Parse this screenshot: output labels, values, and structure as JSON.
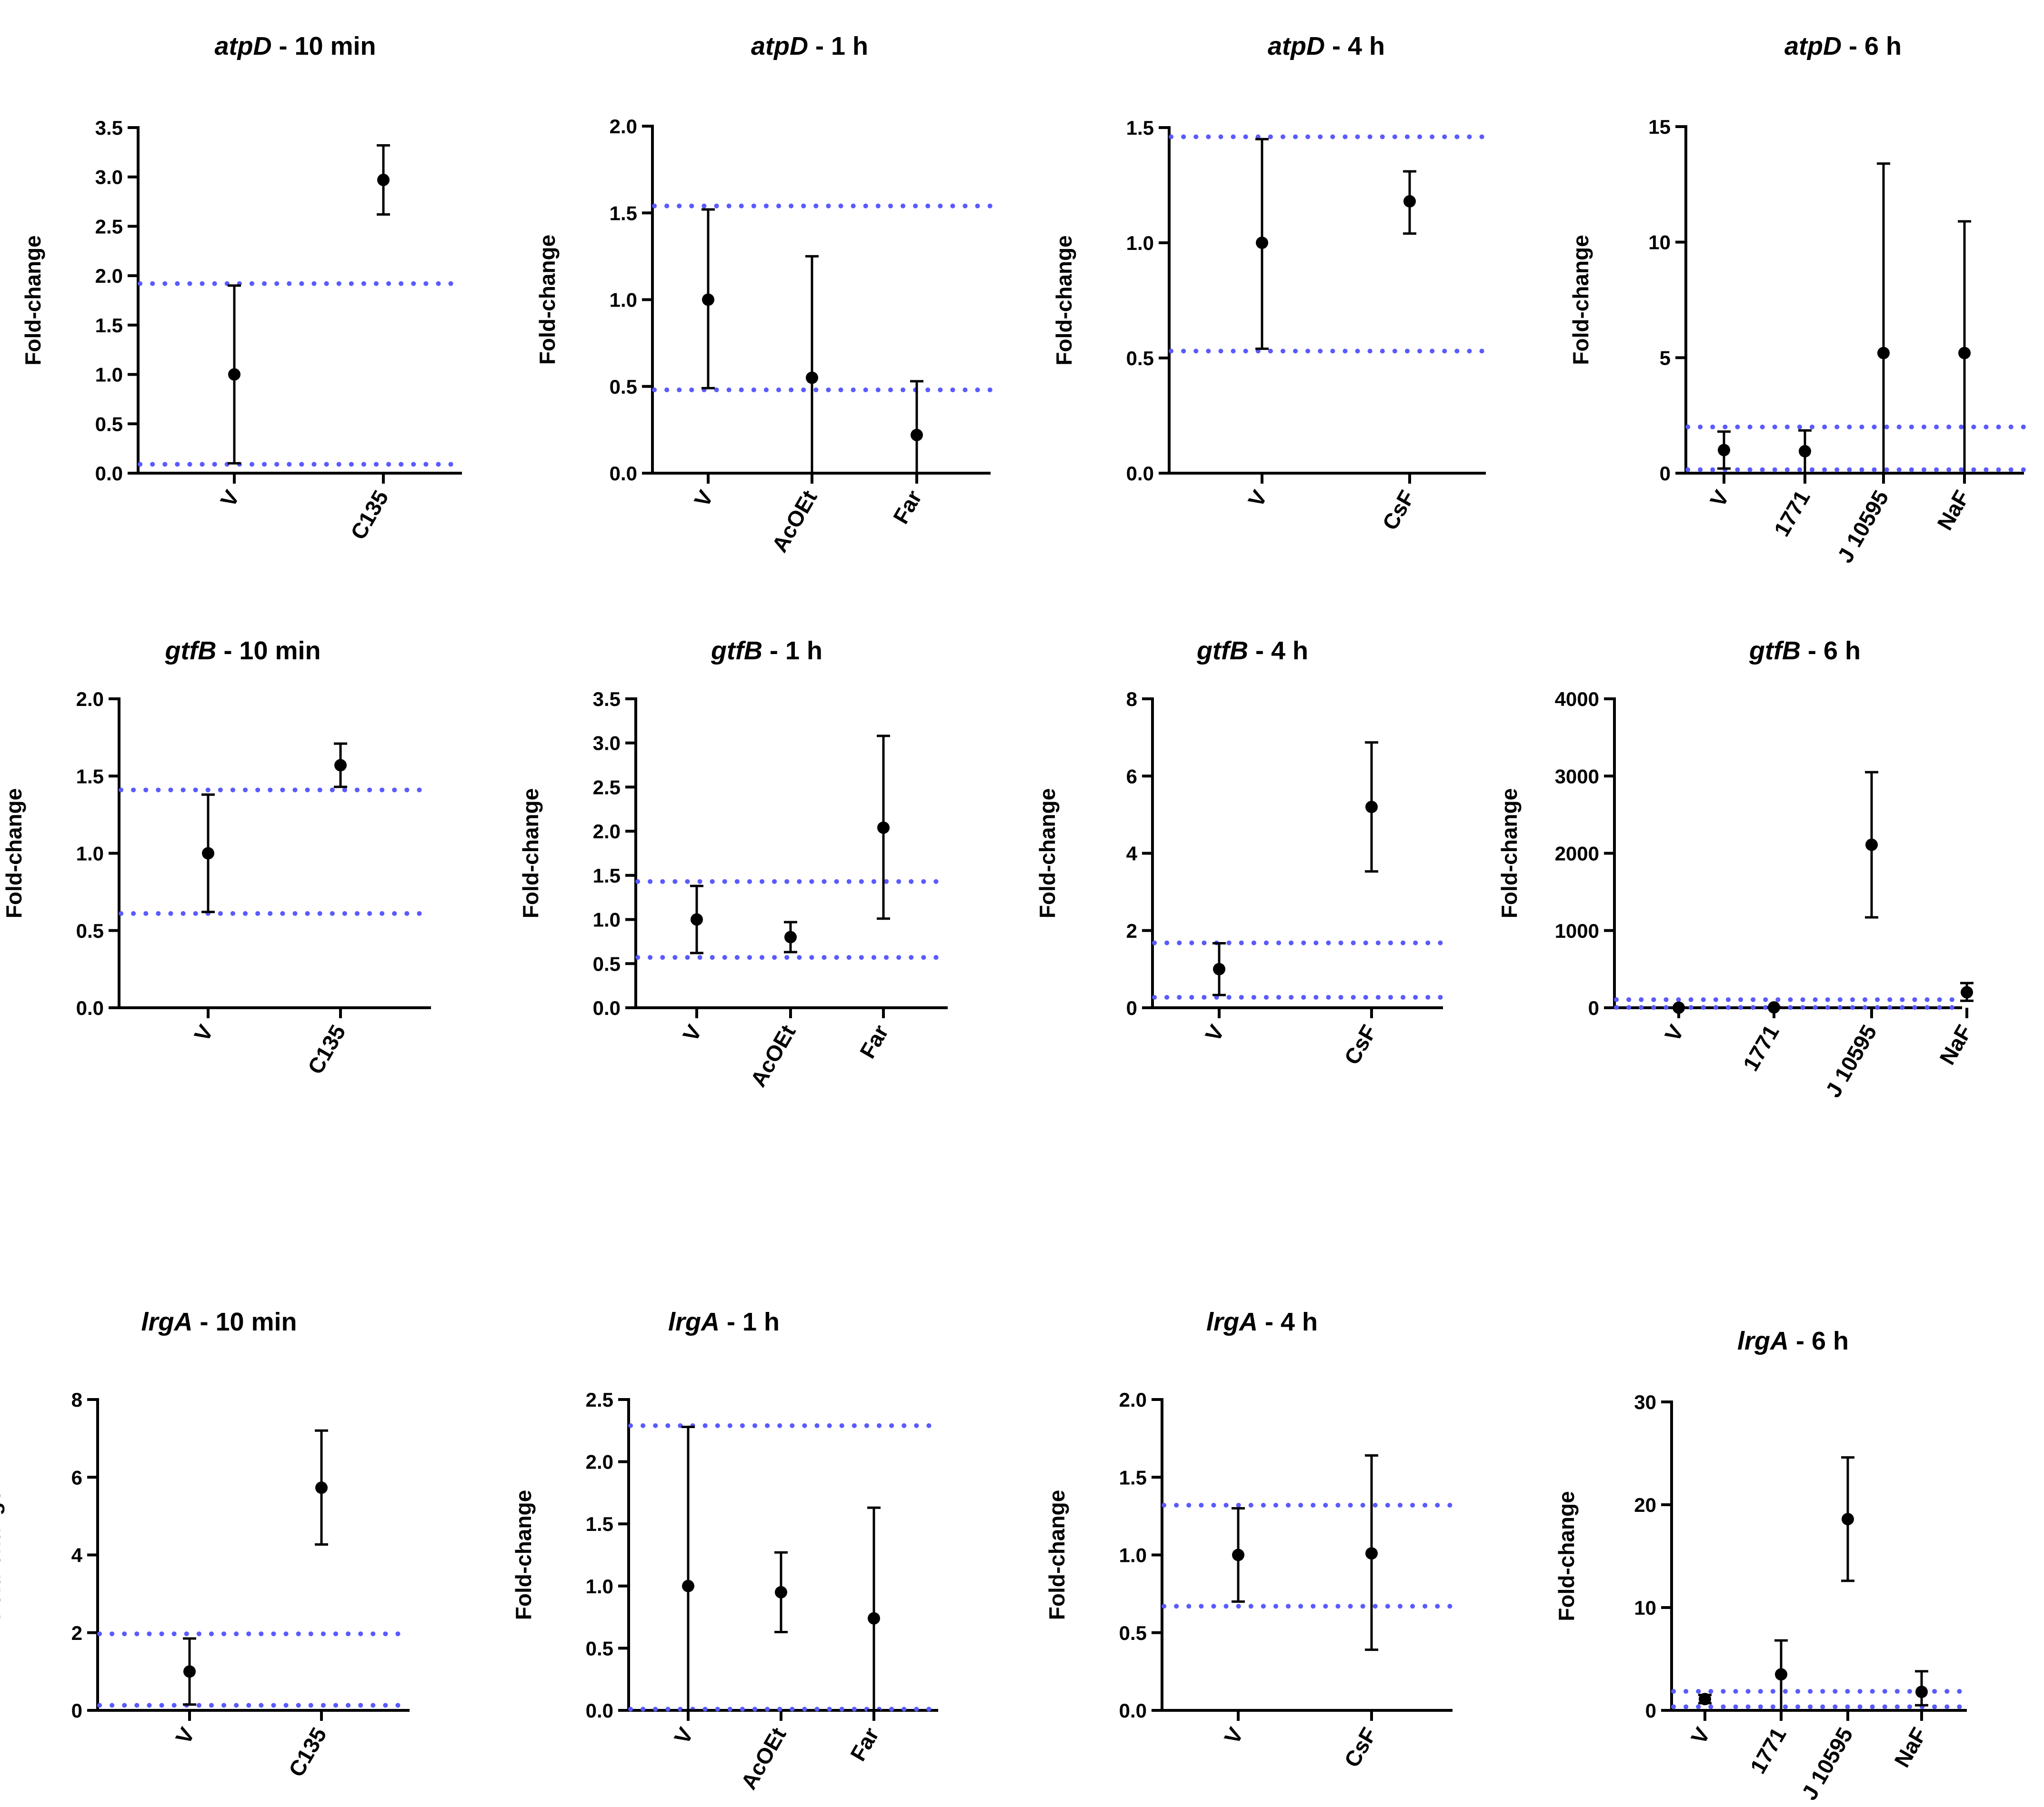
{
  "colors": {
    "reference_line": "#5a5aff",
    "marker": "#000000",
    "axis": "#000000"
  },
  "chart_data": [
    {
      "type": "scatter",
      "title_gene": "atpD",
      "title_suffix": " - 10 min",
      "ylabel": "Fold-change",
      "categories": [
        "V",
        "C135"
      ],
      "ylim": [
        0,
        3.5
      ],
      "yticks": [
        "0.0",
        "0.5",
        "1.0",
        "1.5",
        "2.0",
        "2.5",
        "3.0",
        "3.5"
      ],
      "values": [
        1.0,
        2.97
      ],
      "error_low": [
        0.1,
        2.62
      ],
      "error_high": [
        1.9,
        3.32
      ],
      "reference_lines": [
        0.09,
        1.92
      ]
    },
    {
      "type": "scatter",
      "title_gene": "atpD",
      "title_suffix": " - 1 h",
      "ylabel": "Fold-change",
      "categories": [
        "V",
        "AcOEt",
        "Far"
      ],
      "ylim": [
        0,
        2.0
      ],
      "yticks": [
        "0.0",
        "0.5",
        "1.0",
        "1.5",
        "2.0"
      ],
      "values": [
        1.0,
        0.55,
        0.22
      ],
      "error_low": [
        0.49,
        0.0,
        0.0
      ],
      "error_high": [
        1.52,
        1.25,
        0.53
      ],
      "reference_lines": [
        0.48,
        1.54
      ]
    },
    {
      "type": "scatter",
      "title_gene": "atpD",
      "title_suffix": " - 4 h",
      "ylabel": "Fold-change",
      "categories": [
        "V",
        "CsF"
      ],
      "ylim": [
        0,
        1.5
      ],
      "yticks": [
        "0.0",
        "0.5",
        "1.0",
        "1.5"
      ],
      "values": [
        1.0,
        1.18
      ],
      "error_low": [
        0.54,
        1.04
      ],
      "error_high": [
        1.45,
        1.31
      ],
      "reference_lines": [
        0.53,
        1.46
      ]
    },
    {
      "type": "scatter",
      "title_gene": "atpD",
      "title_suffix": " - 6 h",
      "ylabel": "Fold-change",
      "categories": [
        "V",
        "1771",
        "J 10595",
        "NaF"
      ],
      "ylim": [
        0,
        15
      ],
      "yticks": [
        "0",
        "5",
        "10",
        "15"
      ],
      "values": [
        1.0,
        0.95,
        5.2,
        5.2
      ],
      "error_low": [
        0.2,
        0.0,
        0.0,
        0.0
      ],
      "error_high": [
        1.8,
        1.85,
        13.4,
        10.9
      ],
      "reference_lines": [
        0.15,
        2.0
      ]
    },
    {
      "type": "scatter",
      "title_gene": "gtfB",
      "title_suffix": " - 10 min",
      "ylabel": "Fold-change",
      "categories": [
        "V",
        "C135"
      ],
      "ylim": [
        0,
        2.0
      ],
      "yticks": [
        "0.0",
        "0.5",
        "1.0",
        "1.5",
        "2.0"
      ],
      "values": [
        1.0,
        1.57
      ],
      "error_low": [
        0.62,
        1.43
      ],
      "error_high": [
        1.38,
        1.71
      ],
      "reference_lines": [
        0.61,
        1.41
      ]
    },
    {
      "type": "scatter",
      "title_gene": "gtfB",
      "title_suffix": " - 1 h",
      "ylabel": "Fold-change",
      "categories": [
        "V",
        "AcOEt",
        "Far"
      ],
      "ylim": [
        0,
        3.5
      ],
      "yticks": [
        "0.0",
        "0.5",
        "1.0",
        "1.5",
        "2.0",
        "2.5",
        "3.0",
        "3.5"
      ],
      "values": [
        1.0,
        0.8,
        2.04
      ],
      "error_low": [
        0.62,
        0.63,
        1.01
      ],
      "error_high": [
        1.38,
        0.97,
        3.08
      ],
      "reference_lines": [
        0.57,
        1.43
      ]
    },
    {
      "type": "scatter",
      "title_gene": "gtfB",
      "title_suffix": " -  4 h",
      "ylabel": "Fold-change",
      "categories": [
        "V",
        "CsF"
      ],
      "ylim": [
        0,
        8
      ],
      "yticks": [
        "0",
        "2",
        "4",
        "6",
        "8"
      ],
      "values": [
        1.0,
        5.2
      ],
      "error_low": [
        0.33,
        3.53
      ],
      "error_high": [
        1.67,
        6.87
      ],
      "reference_lines": [
        0.27,
        1.68
      ]
    },
    {
      "type": "scatter",
      "title_gene": "gtfB",
      "title_suffix": " - 6 h",
      "ylabel": "Fold-change",
      "categories": [
        "V",
        "1771",
        "J 10595",
        "NaF"
      ],
      "ylim": [
        0,
        4000
      ],
      "yticks": [
        "0",
        "1000",
        "2000",
        "3000",
        "4000"
      ],
      "values": [
        1,
        5,
        2110,
        200
      ],
      "error_low": [
        0,
        0,
        1170,
        90
      ],
      "error_high": [
        2,
        10,
        3050,
        320
      ],
      "reference_lines": [
        4,
        105
      ]
    },
    {
      "type": "scatter",
      "title_gene": "lrgA",
      "title_suffix": " - 10 min",
      "ylabel": "Fold-change",
      "categories": [
        "V",
        "C135"
      ],
      "ylim": [
        0,
        8
      ],
      "yticks": [
        "0",
        "2",
        "4",
        "6",
        "8"
      ],
      "values": [
        1.0,
        5.73
      ],
      "error_low": [
        0.15,
        4.27
      ],
      "error_high": [
        1.85,
        7.2
      ],
      "reference_lines": [
        0.13,
        1.97
      ]
    },
    {
      "type": "scatter",
      "title_gene": "lrgA",
      "title_suffix": " - 1 h",
      "ylabel": "Fold-change",
      "categories": [
        "V",
        "AcOEt",
        "Far"
      ],
      "ylim": [
        0,
        2.5
      ],
      "yticks": [
        "0.0",
        "0.5",
        "1.0",
        "1.5",
        "2.0",
        "2.5"
      ],
      "values": [
        1.0,
        0.95,
        0.74
      ],
      "error_low": [
        0.0,
        0.63,
        0.0
      ],
      "error_high": [
        2.28,
        1.27,
        1.63
      ],
      "reference_lines": [
        0.01,
        2.29
      ]
    },
    {
      "type": "scatter",
      "title_gene": "lrgA",
      "title_suffix": " - 4 h",
      "ylabel": "Fold-change",
      "categories": [
        "V",
        "CsF"
      ],
      "ylim": [
        0,
        2.0
      ],
      "yticks": [
        "0.0",
        "0.5",
        "1.0",
        "1.5",
        "2.0"
      ],
      "values": [
        1.0,
        1.01
      ],
      "error_low": [
        0.7,
        0.39
      ],
      "error_high": [
        1.3,
        1.64
      ],
      "reference_lines": [
        0.67,
        1.32
      ]
    },
    {
      "type": "scatter",
      "title_gene": "lrgA",
      "title_suffix": " - 6 h",
      "ylabel": "Fold-change",
      "categories": [
        "V",
        "1771",
        "J 10595",
        "NaF"
      ],
      "ylim": [
        0,
        30
      ],
      "yticks": [
        "0",
        "10",
        "20",
        "30"
      ],
      "values": [
        1.1,
        3.5,
        18.6,
        1.8
      ],
      "error_low": [
        0.7,
        0.0,
        12.6,
        0.5
      ],
      "error_high": [
        1.5,
        6.8,
        24.6,
        3.8
      ],
      "reference_lines": [
        0.35,
        1.85
      ]
    }
  ]
}
